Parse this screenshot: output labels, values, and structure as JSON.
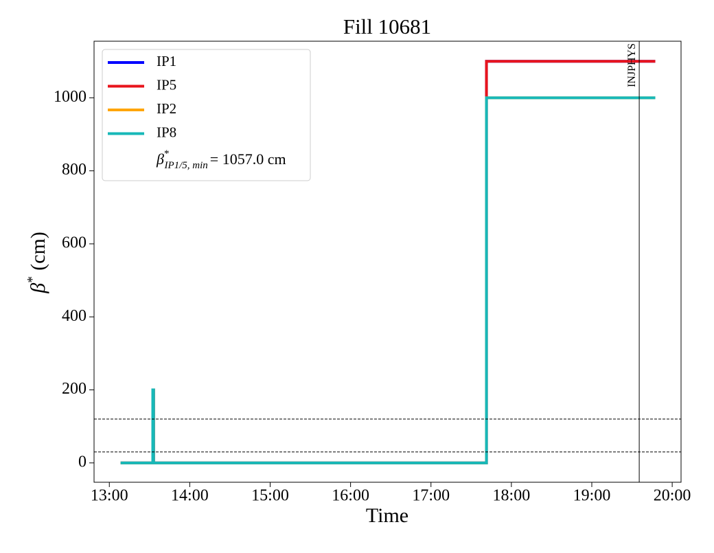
{
  "chart_data": {
    "type": "line",
    "title": "Fill 10681",
    "xlabel": "Time",
    "ylabel": {
      "symbol": "β",
      "sup": "*",
      "unit": "(cm)"
    },
    "x": [
      13.14,
      13.54,
      13.54,
      13.55,
      13.55,
      17.69,
      17.69,
      19.79
    ],
    "series": [
      {
        "name": "IP1",
        "color": "#0000ff",
        "values": [
          0,
          0,
          200,
          200,
          0,
          0,
          1100,
          1100
        ]
      },
      {
        "name": "IP5",
        "color": "#e8141c",
        "values": [
          0,
          0,
          200,
          200,
          0,
          0,
          1100,
          1100
        ]
      },
      {
        "name": "IP2",
        "color": "#ffa500",
        "values": [
          0,
          0,
          200,
          200,
          0,
          0,
          1000,
          1000
        ]
      },
      {
        "name": "IP8",
        "color": "#17b8b8",
        "values": [
          0,
          0,
          200,
          200,
          0,
          0,
          1000,
          1000
        ]
      }
    ],
    "legend_note": {
      "symbol": "β",
      "sup": "*",
      "sub": "IP1/5, min",
      "text": "= 1057.0 cm"
    },
    "legend": "upper left",
    "xlim": [
      12.81,
      20.11
    ],
    "ylim": [
      -53,
      1155
    ],
    "xticks": [
      {
        "value": 13,
        "label": "13:00"
      },
      {
        "value": 14,
        "label": "14:00"
      },
      {
        "value": 15,
        "label": "15:00"
      },
      {
        "value": 16,
        "label": "16:00"
      },
      {
        "value": 17,
        "label": "17:00"
      },
      {
        "value": 18,
        "label": "18:00"
      },
      {
        "value": 19,
        "label": "19:00"
      },
      {
        "value": 20,
        "label": "20:00"
      }
    ],
    "yticks": [
      0,
      200,
      400,
      600,
      800,
      1000
    ],
    "hlines": [
      120,
      30
    ],
    "vlines": [
      {
        "x": 19.59,
        "label": "INJPHYS"
      }
    ],
    "grid": false
  }
}
